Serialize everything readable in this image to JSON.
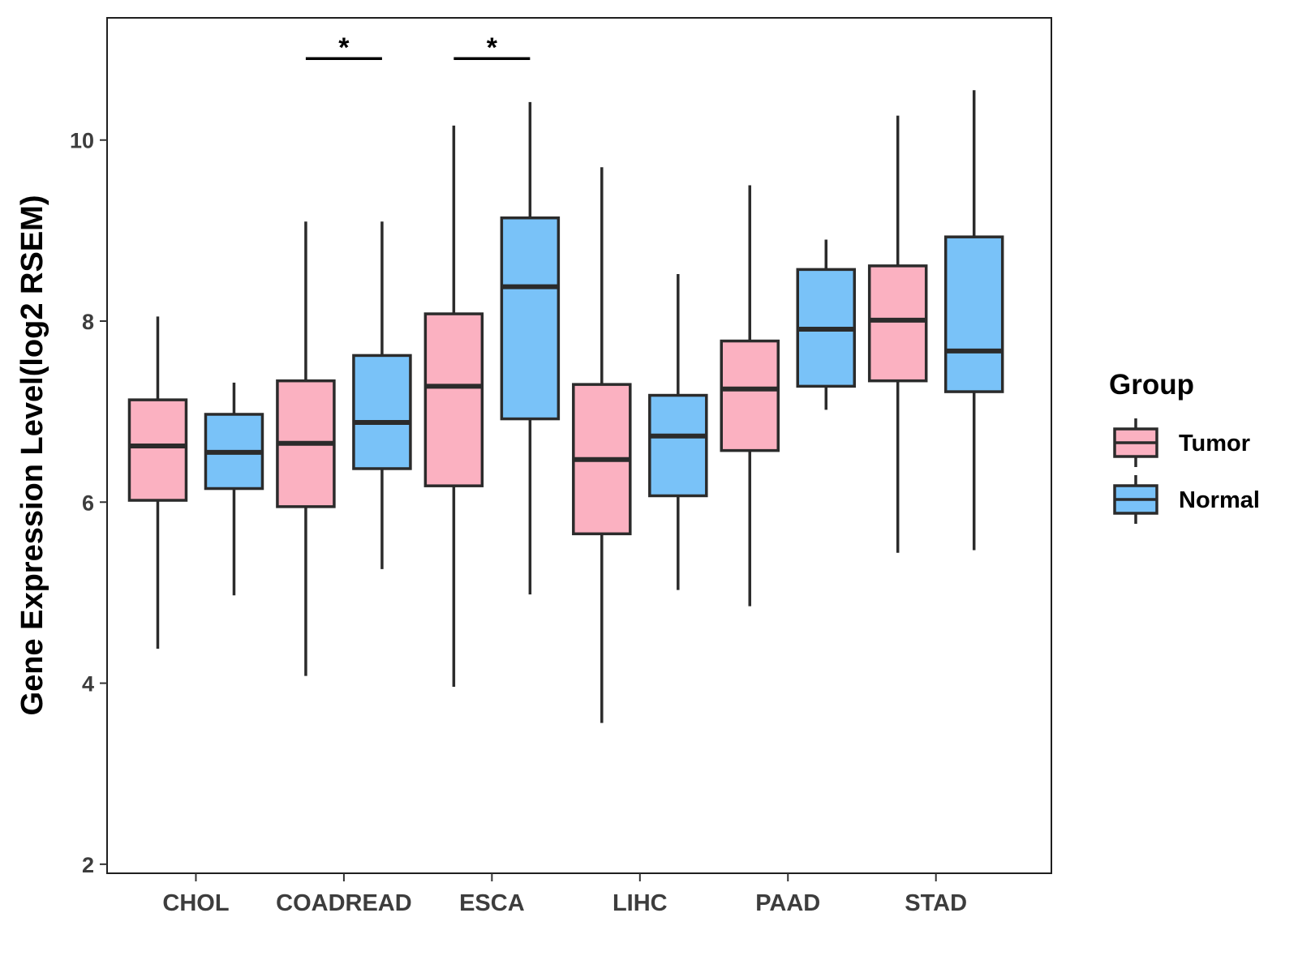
{
  "chart_data": {
    "type": "boxplot",
    "title": "",
    "xlabel": "",
    "ylabel": "Gene Expression Level(log2 RSEM)",
    "ylim": [
      1.9,
      11.35
    ],
    "yticks": [
      2,
      4,
      6,
      8,
      10
    ],
    "categories": [
      "CHOL",
      "COADREAD",
      "ESCA",
      "LIHC",
      "PAAD",
      "STAD"
    ],
    "legend": {
      "title": "Group",
      "position": "right"
    },
    "series": [
      {
        "name": "Tumor",
        "color": "#FBB1C1",
        "boxes": [
          {
            "category": "CHOL",
            "min": 4.38,
            "q1": 6.02,
            "median": 6.62,
            "q3": 7.13,
            "max": 8.05
          },
          {
            "category": "COADREAD",
            "min": 4.08,
            "q1": 5.95,
            "median": 6.65,
            "q3": 7.34,
            "max": 9.1
          },
          {
            "category": "ESCA",
            "min": 3.96,
            "q1": 6.18,
            "median": 7.28,
            "q3": 8.08,
            "max": 10.16
          },
          {
            "category": "LIHC",
            "min": 3.56,
            "q1": 5.65,
            "median": 6.47,
            "q3": 7.3,
            "max": 9.7
          },
          {
            "category": "PAAD",
            "min": 4.85,
            "q1": 6.57,
            "median": 7.25,
            "q3": 7.78,
            "max": 9.5
          },
          {
            "category": "STAD",
            "min": 5.44,
            "q1": 7.34,
            "median": 8.01,
            "q3": 8.61,
            "max": 10.27
          }
        ]
      },
      {
        "name": "Normal",
        "color": "#79C2F8",
        "boxes": [
          {
            "category": "CHOL",
            "min": 4.97,
            "q1": 6.15,
            "median": 6.55,
            "q3": 6.97,
            "max": 7.32
          },
          {
            "category": "COADREAD",
            "min": 5.26,
            "q1": 6.37,
            "median": 6.88,
            "q3": 7.62,
            "max": 9.1
          },
          {
            "category": "ESCA",
            "min": 4.98,
            "q1": 6.92,
            "median": 8.38,
            "q3": 9.14,
            "max": 10.42
          },
          {
            "category": "LIHC",
            "min": 5.03,
            "q1": 6.07,
            "median": 6.73,
            "q3": 7.18,
            "max": 8.52
          },
          {
            "category": "PAAD",
            "min": 7.02,
            "q1": 7.28,
            "median": 7.91,
            "q3": 8.57,
            "max": 8.9
          },
          {
            "category": "STAD",
            "min": 5.47,
            "q1": 7.22,
            "median": 7.67,
            "q3": 8.93,
            "max": 10.55
          }
        ]
      }
    ],
    "annotations": [
      {
        "category": "COADREAD",
        "text": "*",
        "y": 10.9
      },
      {
        "category": "ESCA",
        "text": "*",
        "y": 10.9
      }
    ]
  }
}
